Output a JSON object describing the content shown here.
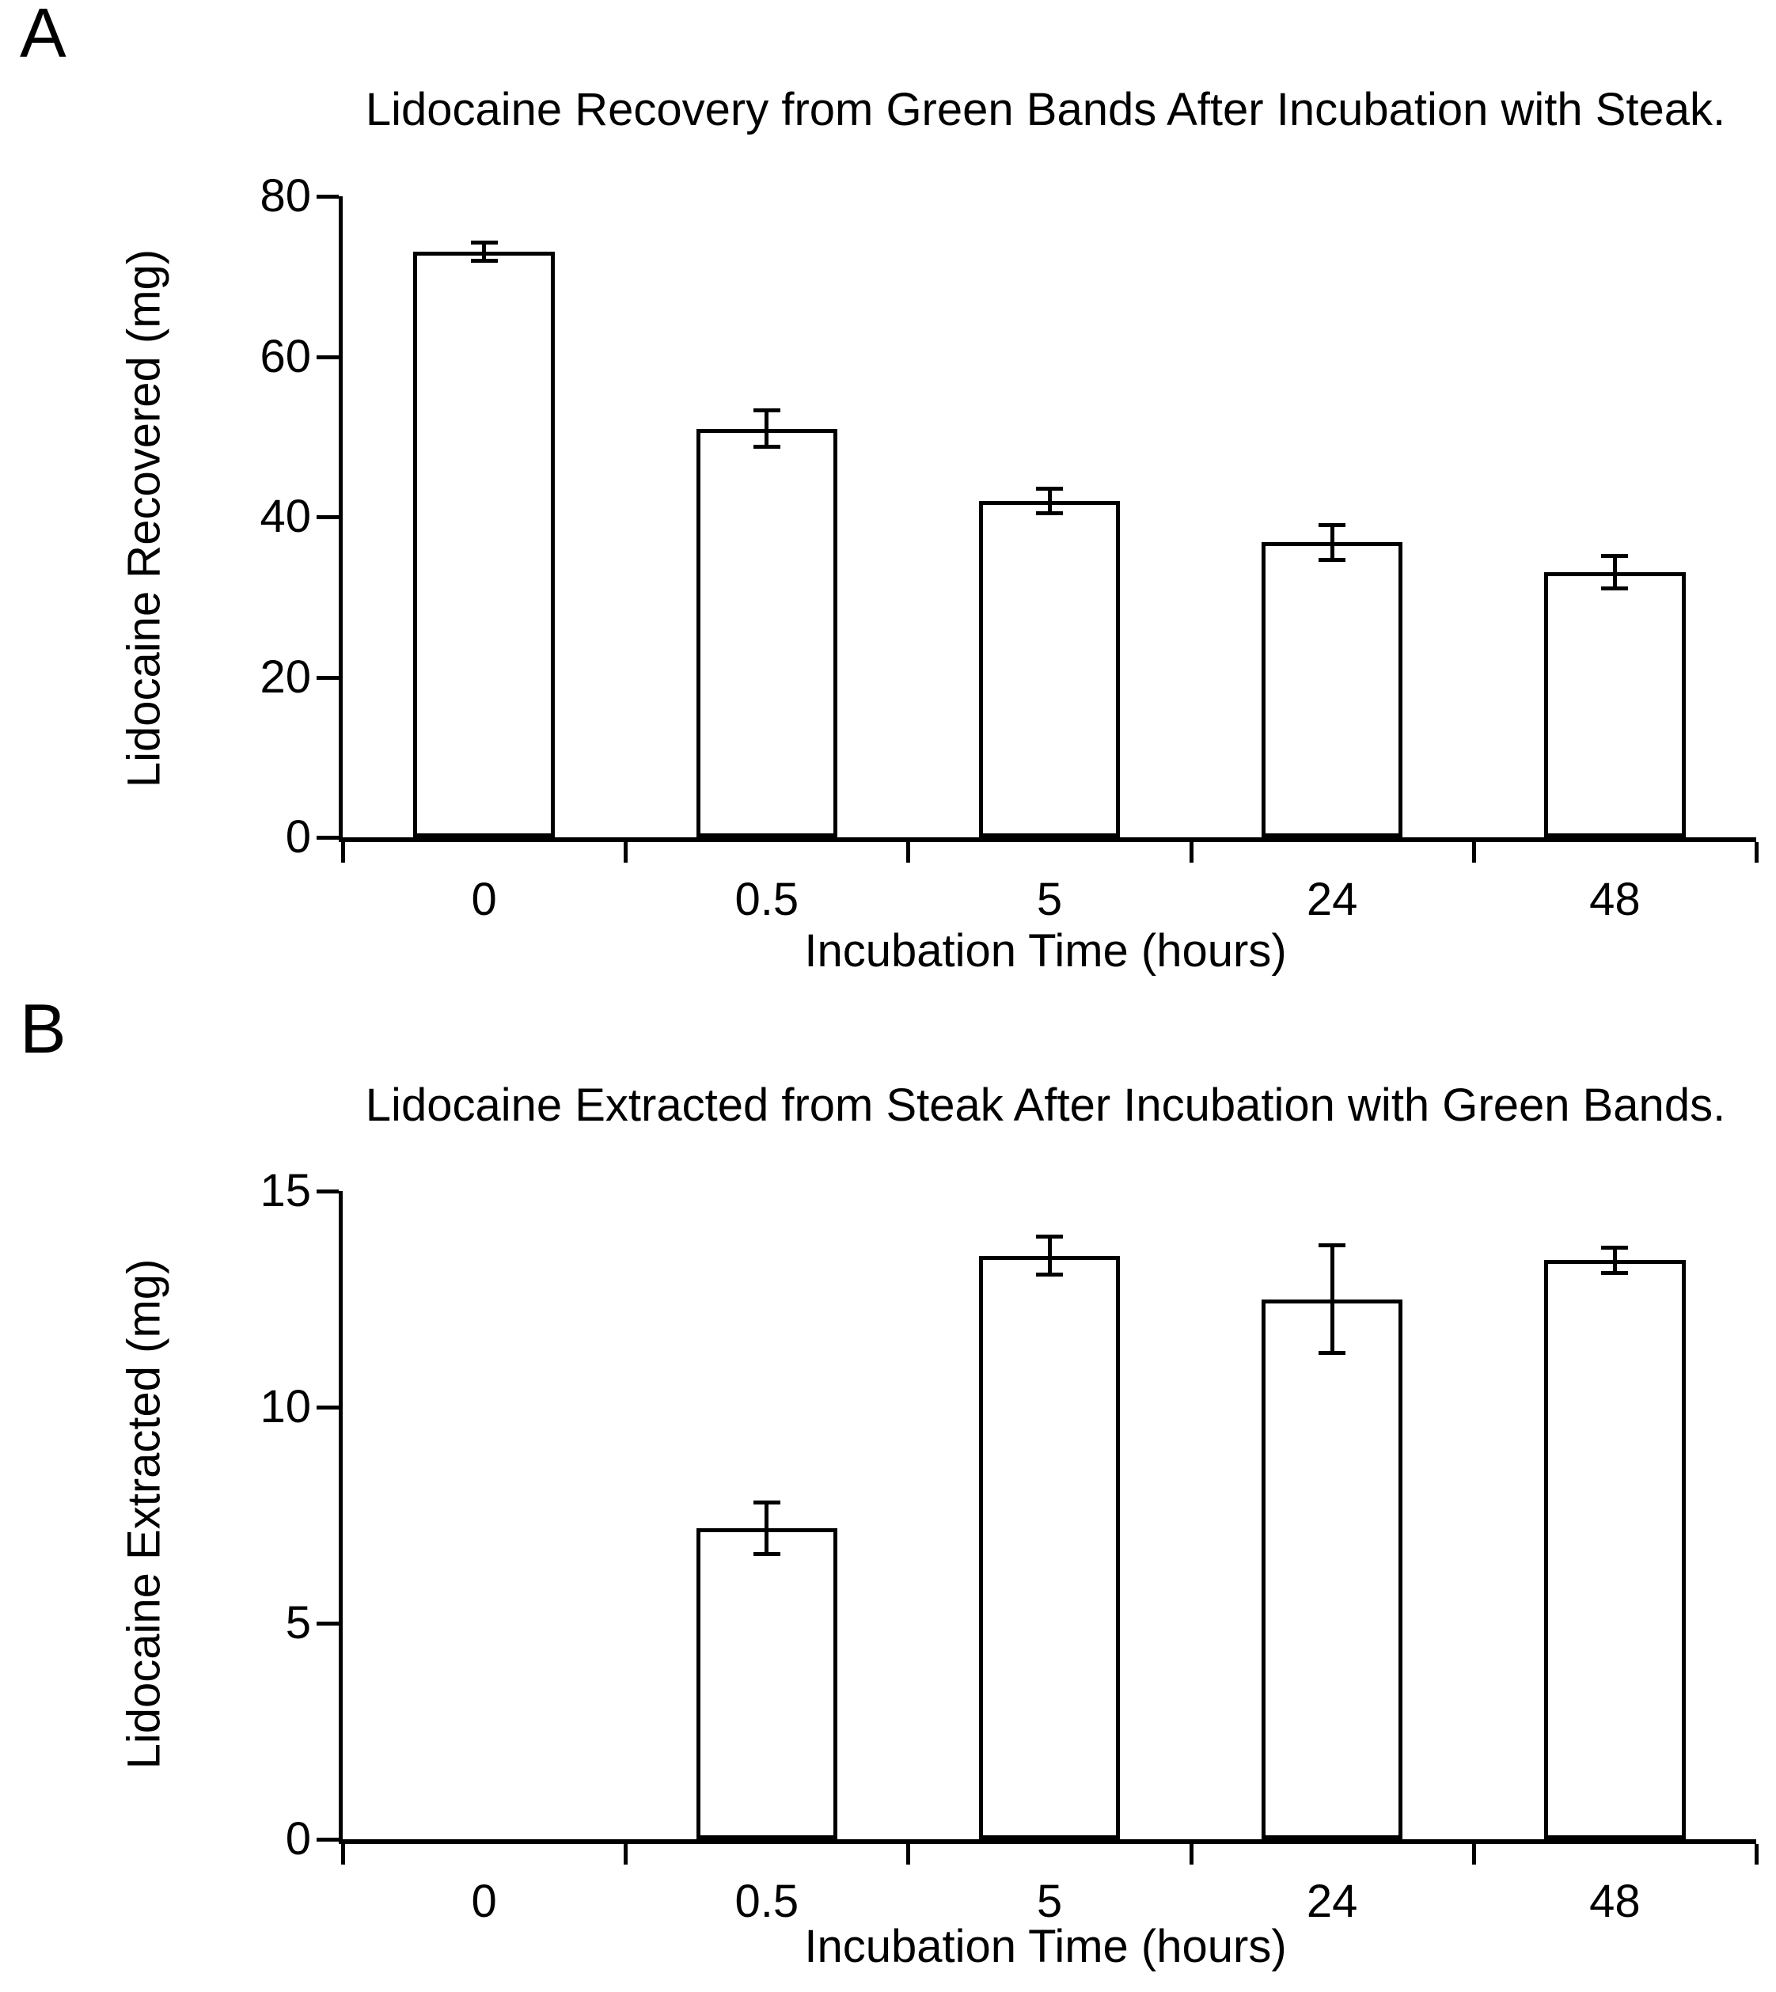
{
  "page": {
    "background": "#ffffff",
    "text_color": "#000000"
  },
  "chart_data": [
    {
      "type": "bar",
      "panel_label": "A",
      "title": "Lidocaine Recovery from Green Bands After Incubation with Steak.",
      "xlabel": "Incubation Time (hours)",
      "ylabel": "Lidocaine Recovered (mg)",
      "categories": [
        "0",
        "0.5",
        "5",
        "24",
        "48"
      ],
      "values": [
        73.1,
        51.0,
        42.0,
        36.8,
        33.1
      ],
      "errors": [
        1.2,
        2.3,
        1.6,
        2.2,
        2.1
      ],
      "yticks": [
        0,
        20,
        40,
        60,
        80
      ],
      "ylim": [
        0,
        80
      ],
      "bar_fill": "#ffffff",
      "bar_border": "#000000",
      "error_color": "#000000",
      "grid": false,
      "legend": false
    },
    {
      "type": "bar",
      "panel_label": "B",
      "title": "Lidocaine Extracted from Steak After Incubation with Green Bands.",
      "xlabel": "Incubation Time (hours)",
      "ylabel": "Lidocaine Extracted (mg)",
      "categories": [
        "0",
        "0.5",
        "5",
        "24",
        "48"
      ],
      "values": [
        0,
        7.2,
        13.5,
        12.5,
        13.4
      ],
      "errors": [
        0,
        0.6,
        0.45,
        1.25,
        0.3
      ],
      "yticks": [
        0,
        5,
        10,
        15
      ],
      "ylim": [
        0,
        15
      ],
      "bar_fill": "#ffffff",
      "bar_border": "#000000",
      "error_color": "#000000",
      "grid": false,
      "legend": false
    }
  ]
}
